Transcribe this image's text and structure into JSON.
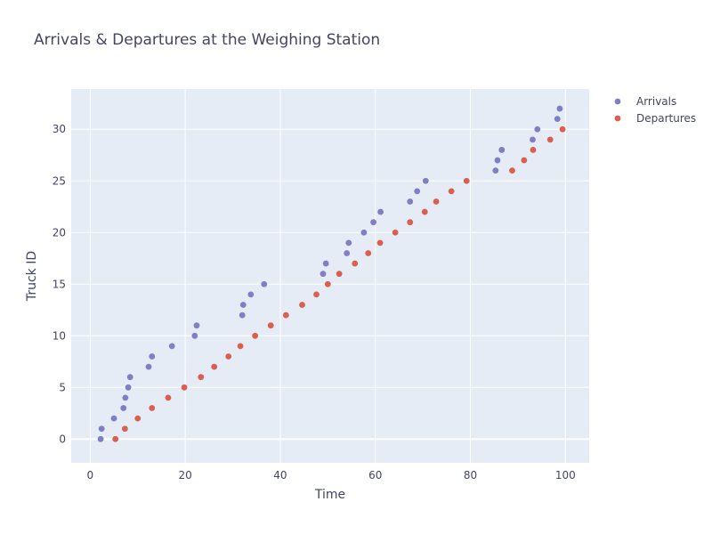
{
  "chart_data": {
    "type": "scatter",
    "title": "Arrivals & Departures at the Weighing Station",
    "xlabel": "Time",
    "ylabel": "Truck ID",
    "xlim": [
      -4,
      105
    ],
    "ylim": [
      -2.3,
      33.9
    ],
    "x_ticks": [
      0,
      20,
      40,
      60,
      80,
      100
    ],
    "y_ticks": [
      0,
      5,
      10,
      15,
      20,
      25,
      30
    ],
    "grid": true,
    "legend_position": "top-right",
    "background_color": "#E5ECF6",
    "series": [
      {
        "name": "Arrivals",
        "color": "#7F7FC4",
        "points": [
          [
            2.2,
            0
          ],
          [
            2.4,
            1
          ],
          [
            5.0,
            2
          ],
          [
            7.0,
            3
          ],
          [
            7.4,
            4
          ],
          [
            8.0,
            5
          ],
          [
            8.4,
            6
          ],
          [
            12.3,
            7
          ],
          [
            13.0,
            8
          ],
          [
            17.2,
            9
          ],
          [
            22.0,
            10
          ],
          [
            22.4,
            11
          ],
          [
            32.0,
            12
          ],
          [
            32.2,
            13
          ],
          [
            33.8,
            14
          ],
          [
            36.6,
            15
          ],
          [
            49.0,
            16
          ],
          [
            49.6,
            17
          ],
          [
            54.0,
            18
          ],
          [
            54.4,
            19
          ],
          [
            57.6,
            20
          ],
          [
            59.6,
            21
          ],
          [
            61.1,
            22
          ],
          [
            67.3,
            23
          ],
          [
            68.8,
            24
          ],
          [
            70.6,
            25
          ],
          [
            85.3,
            26
          ],
          [
            85.7,
            27
          ],
          [
            86.6,
            28
          ],
          [
            93.1,
            29
          ],
          [
            94.1,
            30
          ],
          [
            98.3,
            31
          ],
          [
            98.8,
            32
          ]
        ]
      },
      {
        "name": "Departures",
        "color": "#D9604F",
        "points": [
          [
            5.3,
            0
          ],
          [
            7.3,
            1
          ],
          [
            10.0,
            2
          ],
          [
            13.0,
            3
          ],
          [
            16.4,
            4
          ],
          [
            19.8,
            5
          ],
          [
            23.3,
            6
          ],
          [
            26.1,
            7
          ],
          [
            29.1,
            8
          ],
          [
            31.6,
            9
          ],
          [
            34.7,
            10
          ],
          [
            38.0,
            11
          ],
          [
            41.2,
            12
          ],
          [
            44.6,
            13
          ],
          [
            47.6,
            14
          ],
          [
            50.0,
            15
          ],
          [
            52.4,
            16
          ],
          [
            55.7,
            17
          ],
          [
            58.5,
            18
          ],
          [
            61.0,
            19
          ],
          [
            64.2,
            20
          ],
          [
            67.3,
            21
          ],
          [
            70.4,
            22
          ],
          [
            72.8,
            23
          ],
          [
            76.0,
            24
          ],
          [
            79.2,
            25
          ],
          [
            88.8,
            26
          ],
          [
            91.3,
            27
          ],
          [
            93.2,
            28
          ],
          [
            96.8,
            29
          ],
          [
            99.4,
            30
          ]
        ]
      }
    ]
  }
}
